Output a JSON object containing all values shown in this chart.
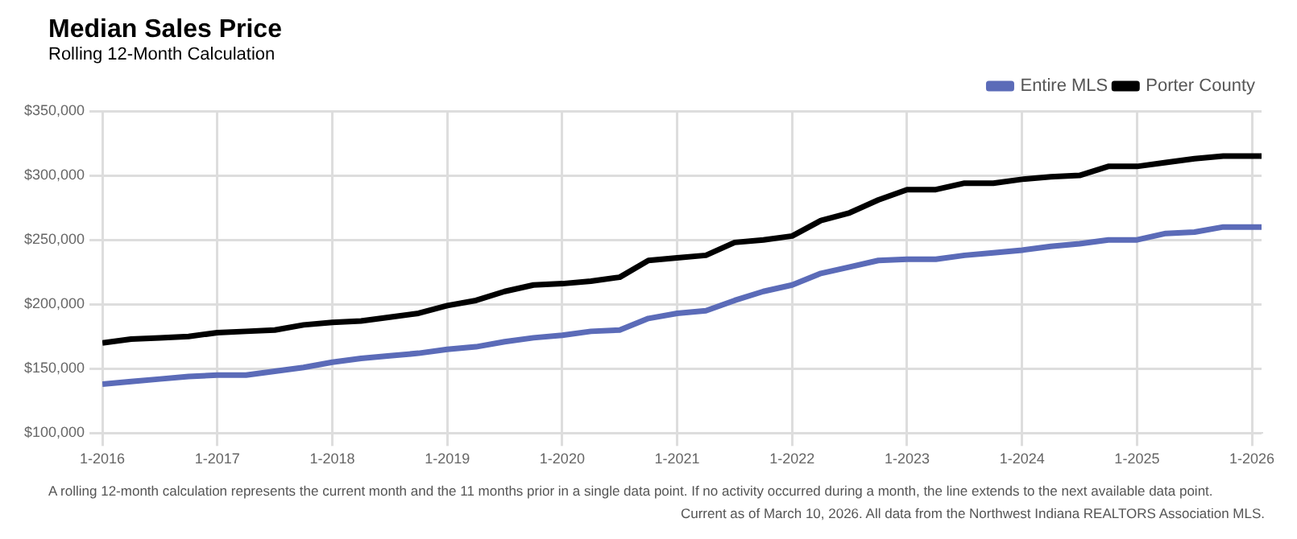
{
  "chart_data": {
    "type": "line",
    "title": "Median Sales Price",
    "subtitle": "Rolling 12-Month Calculation",
    "x": [
      "2016-01",
      "2016-04",
      "2016-07",
      "2016-10",
      "2017-01",
      "2017-04",
      "2017-07",
      "2017-10",
      "2018-01",
      "2018-04",
      "2018-07",
      "2018-10",
      "2019-01",
      "2019-04",
      "2019-07",
      "2019-10",
      "2020-01",
      "2020-04",
      "2020-07",
      "2020-10",
      "2021-01",
      "2021-04",
      "2021-07",
      "2021-10",
      "2022-01",
      "2022-04",
      "2022-07",
      "2022-10",
      "2023-01",
      "2023-04",
      "2023-07",
      "2023-10",
      "2024-01",
      "2024-04",
      "2024-07",
      "2024-10",
      "2025-01",
      "2025-04",
      "2025-07",
      "2025-10",
      "2026-01",
      "2026-02"
    ],
    "series": [
      {
        "name": "Entire MLS",
        "color": "#5b6bb8",
        "values": [
          138000,
          140000,
          142000,
          144000,
          145000,
          145000,
          148000,
          151000,
          155000,
          158000,
          160000,
          162000,
          165000,
          167000,
          171000,
          174000,
          176000,
          179000,
          180000,
          189000,
          193000,
          195000,
          203000,
          210000,
          215000,
          224000,
          229000,
          234000,
          235000,
          235000,
          238000,
          240000,
          242000,
          245000,
          247000,
          250000,
          250000,
          255000,
          256000,
          260000,
          260000,
          260000
        ]
      },
      {
        "name": "Porter County",
        "color": "#000000",
        "values": [
          170000,
          173000,
          174000,
          175000,
          178000,
          179000,
          180000,
          184000,
          186000,
          187000,
          190000,
          193000,
          199000,
          203000,
          210000,
          215000,
          216000,
          218000,
          221000,
          234000,
          236000,
          238000,
          248000,
          250000,
          253000,
          265000,
          271000,
          281000,
          289000,
          289000,
          294000,
          294000,
          297000,
          299000,
          300000,
          307000,
          307000,
          310000,
          313000,
          315000,
          315000,
          315000
        ]
      }
    ],
    "xlim": [
      "2016-01",
      "2026-02"
    ],
    "xticks": [
      {
        "value": "2016-01",
        "label": "1-2016"
      },
      {
        "value": "2017-01",
        "label": "1-2017"
      },
      {
        "value": "2018-01",
        "label": "1-2018"
      },
      {
        "value": "2019-01",
        "label": "1-2019"
      },
      {
        "value": "2020-01",
        "label": "1-2020"
      },
      {
        "value": "2021-01",
        "label": "1-2021"
      },
      {
        "value": "2022-01",
        "label": "1-2022"
      },
      {
        "value": "2023-01",
        "label": "1-2023"
      },
      {
        "value": "2024-01",
        "label": "1-2024"
      },
      {
        "value": "2025-01",
        "label": "1-2025"
      },
      {
        "value": "2026-01",
        "label": "1-2026"
      }
    ],
    "ylim": [
      100000,
      350000
    ],
    "yticks": [
      {
        "value": 100000,
        "label": "$100,000"
      },
      {
        "value": 150000,
        "label": "$150,000"
      },
      {
        "value": 200000,
        "label": "$200,000"
      },
      {
        "value": 250000,
        "label": "$250,000"
      },
      {
        "value": 300000,
        "label": "$300,000"
      },
      {
        "value": 350000,
        "label": "$350,000"
      }
    ],
    "grid": true,
    "legend": "top right",
    "line_style": "solid",
    "annotations": [
      "A rolling 12-month calculation represents the current month and the 11 months prior in a single data point. If no activity occurred during a month, the line extends to the next available data point.",
      "Current as of March 10, 2026. All data from the Northwest Indiana REALTORS Association MLS."
    ]
  }
}
